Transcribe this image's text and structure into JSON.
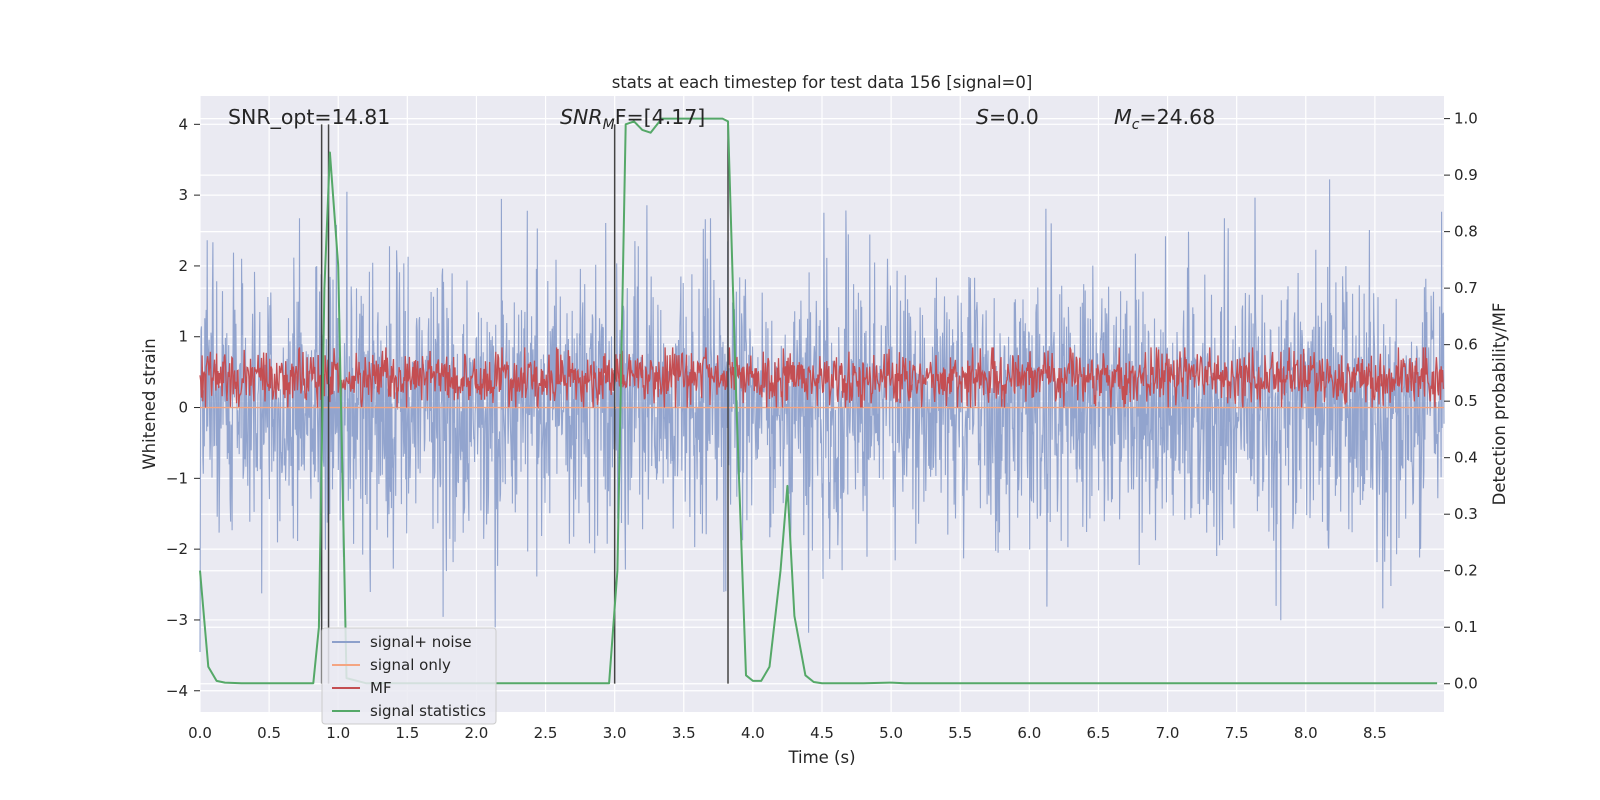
{
  "chart_data": {
    "type": "line",
    "title": "stats at each timestep for test data 156 [signal=0]",
    "xlabel": "Time (s)",
    "ylabel": "Whitened strain",
    "ylabel_right": "Detection probability/MF",
    "xlim": [
      0.0,
      9.0
    ],
    "ylim": [
      -4.3,
      4.4
    ],
    "ylim_right": [
      -0.05,
      1.04
    ],
    "x_ticks": [
      "0.0",
      "0.5",
      "1.0",
      "1.5",
      "2.0",
      "2.5",
      "3.0",
      "3.5",
      "4.0",
      "4.5",
      "5.0",
      "5.5",
      "6.0",
      "6.5",
      "7.0",
      "7.5",
      "8.0",
      "8.5"
    ],
    "x_tick_values": [
      0.0,
      0.5,
      1.0,
      1.5,
      2.0,
      2.5,
      3.0,
      3.5,
      4.0,
      4.5,
      5.0,
      5.5,
      6.0,
      6.5,
      7.0,
      7.5,
      8.0,
      8.5
    ],
    "y_ticks": [
      "−4",
      "−3",
      "−2",
      "−1",
      "0",
      "1",
      "2",
      "3",
      "4"
    ],
    "y_tick_values": [
      -4,
      -3,
      -2,
      -1,
      0,
      1,
      2,
      3,
      4
    ],
    "y_right_ticks": [
      "0.0",
      "0.1",
      "0.2",
      "0.3",
      "0.4",
      "0.5",
      "0.6",
      "0.7",
      "0.8",
      "0.9",
      "1.0"
    ],
    "y_right_tick_values": [
      0.0,
      0.1,
      0.2,
      0.3,
      0.4,
      0.5,
      0.6,
      0.7,
      0.8,
      0.9,
      1.0
    ],
    "grid": true,
    "legend_position": "lower-left",
    "annotations": {
      "snr_opt": "SNR_opt=14.81",
      "snr_mf_base": "SNR",
      "snr_mf_sub": "M",
      "snr_mf_rest": "F=[4.17]",
      "s_var": "S",
      "s_rest": "=0.0",
      "mc_var": "M",
      "mc_sub": "c",
      "mc_rest": "=24.68"
    },
    "vertical_lines_x": [
      0.88,
      0.93,
      3.0,
      3.82
    ],
    "series": [
      {
        "name": "signal+ noise",
        "color": "#8da0cb",
        "axis": "left",
        "description": "dense noise, amplitude mostly within ±1.6, peaks reaching 4 and -3.9",
        "envelope_max": 4.0,
        "envelope_min": -3.9
      },
      {
        "name": "signal only",
        "color": "#f4a582",
        "axis": "left",
        "values_constant": 0.0
      },
      {
        "name": "MF",
        "color": "#c44e52",
        "axis": "left",
        "band": [
          0.0,
          0.85
        ]
      },
      {
        "name": "signal statistics",
        "color": "#55a868",
        "axis": "right",
        "x": [
          0.0,
          0.06,
          0.12,
          0.18,
          0.3,
          0.5,
          0.7,
          0.82,
          0.86,
          0.9,
          0.94,
          1.0,
          1.06,
          1.2,
          1.5,
          2.0,
          2.5,
          2.85,
          2.96,
          3.02,
          3.08,
          3.14,
          3.2,
          3.26,
          3.34,
          3.4,
          3.5,
          3.6,
          3.7,
          3.78,
          3.82,
          3.88,
          3.95,
          4.0,
          4.06,
          4.12,
          4.2,
          4.25,
          4.3,
          4.38,
          4.44,
          4.5,
          4.8,
          5.0,
          5.1,
          5.5,
          6.0,
          7.0,
          8.0,
          8.95
        ],
        "y": [
          0.2,
          0.03,
          0.005,
          0.002,
          0.001,
          0.001,
          0.001,
          0.001,
          0.1,
          0.7,
          0.94,
          0.74,
          0.01,
          0.001,
          0.001,
          0.001,
          0.001,
          0.001,
          0.001,
          0.2,
          0.99,
          0.995,
          0.98,
          0.975,
          1.0,
          1.0,
          1.0,
          1.0,
          1.0,
          1.0,
          0.995,
          0.5,
          0.015,
          0.005,
          0.005,
          0.03,
          0.2,
          0.35,
          0.12,
          0.015,
          0.003,
          0.001,
          0.001,
          0.002,
          0.001,
          0.001,
          0.001,
          0.001,
          0.001,
          0.001
        ]
      }
    ]
  }
}
